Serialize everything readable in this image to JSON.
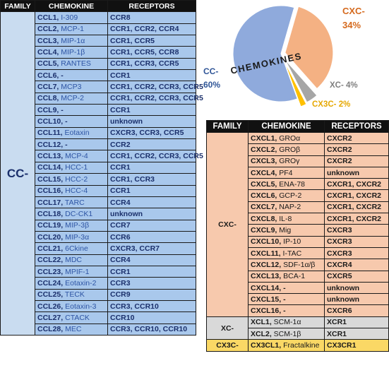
{
  "headers": {
    "family": "FAMILY",
    "chemokine": "CHEMOKINE",
    "receptors": "RECEPTORS"
  },
  "cc": {
    "family": "CC-",
    "rows": [
      {
        "name": "CCL1,",
        "alias": " I-309",
        "receptors": "CCR8"
      },
      {
        "name": "CCL2,",
        "alias": " MCP-1",
        "receptors": "CCR1, CCR2, CCR4"
      },
      {
        "name": "CCL3,",
        "alias": " MIP-1α",
        "receptors": "CCR1, CCR5"
      },
      {
        "name": "CCL4,",
        "alias": " MIP-1β",
        "receptors": "CCR1, CCR5, CCR8"
      },
      {
        "name": "CCL5,",
        "alias": " RANTES",
        "receptors": "CCR1, CCR3, CCR5"
      },
      {
        "name": "CCL6, -",
        "alias": "",
        "receptors": "CCR1"
      },
      {
        "name": "CCL7,",
        "alias": " MCP3",
        "receptors": "CCR1, CCR2, CCR3, CCR5"
      },
      {
        "name": "CCL8,",
        "alias": " MCP-2",
        "receptors": "CCR1, CCR2, CCR3, CCR5"
      },
      {
        "name": "CCL9, -",
        "alias": "",
        "receptors": "CCR1"
      },
      {
        "name": "CCL10, -",
        "alias": "",
        "receptors": "unknown"
      },
      {
        "name": "CCL11,",
        "alias": " Eotaxin",
        "receptors": "CXCR3, CCR3, CCR5"
      },
      {
        "name": "CCL12, -",
        "alias": "",
        "receptors": "CCR2"
      },
      {
        "name": "CCL13,",
        "alias": " MCP-4",
        "receptors": "CCR1, CCR2, CCR3, CCR5"
      },
      {
        "name": "CCL14,",
        "alias": " HCC-1",
        "receptors": "CCR1"
      },
      {
        "name": "CCL15,",
        "alias": " HCC-2",
        "receptors": "CCR1, CCR3"
      },
      {
        "name": "CCL16,",
        "alias": " HCC-4",
        "receptors": "CCR1"
      },
      {
        "name": "CCL17,",
        "alias": " TARC",
        "receptors": "CCR4"
      },
      {
        "name": "CCL18,",
        "alias": " DC-CK1",
        "receptors": "unknown"
      },
      {
        "name": "CCL19,",
        "alias": " MIP-3β",
        "receptors": "CCR7"
      },
      {
        "name": "CCL20,",
        "alias": " MIP-3α",
        "receptors": "CCR6"
      },
      {
        "name": "CCL21,",
        "alias": " 6Ckine",
        "receptors": "CXCR3, CCR7"
      },
      {
        "name": "CCL22,",
        "alias": " MDC",
        "receptors": "CCR4"
      },
      {
        "name": "CCL23,",
        "alias": " MPIF-1",
        "receptors": "CCR1"
      },
      {
        "name": "CCL24,",
        "alias": " Eotaxin-2",
        "receptors": "CCR3"
      },
      {
        "name": "CCL25,",
        "alias": " TECK",
        "receptors": "CCR9"
      },
      {
        "name": "CCL26,",
        "alias": " Eotaxin-3",
        "receptors": "CCR3, CCR10"
      },
      {
        "name": "CCL27,",
        "alias": " CTACK",
        "receptors": "CCR10"
      },
      {
        "name": "CCL28,",
        "alias": " MEC",
        "receptors": "CCR3, CCR10, CCR10"
      }
    ]
  },
  "cxc": {
    "family": "CXC-",
    "rows": [
      {
        "name": "CXCL1,",
        "alias": " GROα",
        "receptors": "CXCR2"
      },
      {
        "name": "CXCL2,",
        "alias": " GROβ",
        "receptors": "CXCR2"
      },
      {
        "name": "CXCL3,",
        "alias": " GROγ",
        "receptors": "CXCR2"
      },
      {
        "name": "CXCL4,",
        "alias": " PF4",
        "receptors": "unknown"
      },
      {
        "name": "CXCL5,",
        "alias": " ENA-78",
        "receptors": "CXCR1, CXCR2"
      },
      {
        "name": "CXCL6,",
        "alias": " GCP-2",
        "receptors": "CXCR1, CXCR2"
      },
      {
        "name": "CXCL7,",
        "alias": " NAP-2",
        "receptors": "CXCR1, CXCR2"
      },
      {
        "name": "CXCL8,",
        "alias": " IL-8",
        "receptors": "CXCR1, CXCR2"
      },
      {
        "name": "CXCL9,",
        "alias": " Mig",
        "receptors": "CXCR3"
      },
      {
        "name": "CXCL10,",
        "alias": " IP-10",
        "receptors": "CXCR3"
      },
      {
        "name": "CXCL11,",
        "alias": " I-TAC",
        "receptors": "CXCR3"
      },
      {
        "name": "CXCL12,",
        "alias": " SDF-1α/β",
        "receptors": "CXCR4"
      },
      {
        "name": "CXCL13,",
        "alias": " BCA-1",
        "receptors": "CXCR5"
      },
      {
        "name": "CXCL14, -",
        "alias": "",
        "receptors": "unknown"
      },
      {
        "name": "CXCL15, -",
        "alias": "",
        "receptors": "unknown"
      },
      {
        "name": "CXCL16, -",
        "alias": "",
        "receptors": "CXCR6"
      }
    ]
  },
  "xc": {
    "family": "XC-",
    "rows": [
      {
        "name": "XCL1,",
        "alias": " SCM-1α",
        "receptors": "XCR1"
      },
      {
        "name": "XCL2,",
        "alias": " SCM-1β",
        "receptors": "XCR1"
      }
    ]
  },
  "cx3c": {
    "family": "CX3C-",
    "rows": [
      {
        "name": "CX3CL1,",
        "alias": " Fractalkine",
        "receptors": "CX3CR1"
      }
    ]
  },
  "pie": {
    "center_label": "CHEMOKINES",
    "slices": [
      {
        "name": "CC-",
        "value": 60,
        "label_name": "CC-",
        "label_pct": "60%",
        "color": "#8faadc",
        "text_color": "#2f5597"
      },
      {
        "name": "CXC-",
        "value": 34,
        "label_name": "CXC-",
        "label_pct": "34%",
        "color": "#f4b183",
        "text_color": "#d56a1e"
      },
      {
        "name": "XC-",
        "value": 4,
        "label_name": "XC- 4%",
        "label_pct": "",
        "color": "#a6a6a6",
        "text_color": "#7f7f7f"
      },
      {
        "name": "CX3C-",
        "value": 2,
        "label_name": "CX3C- 2%",
        "label_pct": "",
        "color": "#ffc000",
        "text_color": "#e6a800"
      }
    ]
  }
}
